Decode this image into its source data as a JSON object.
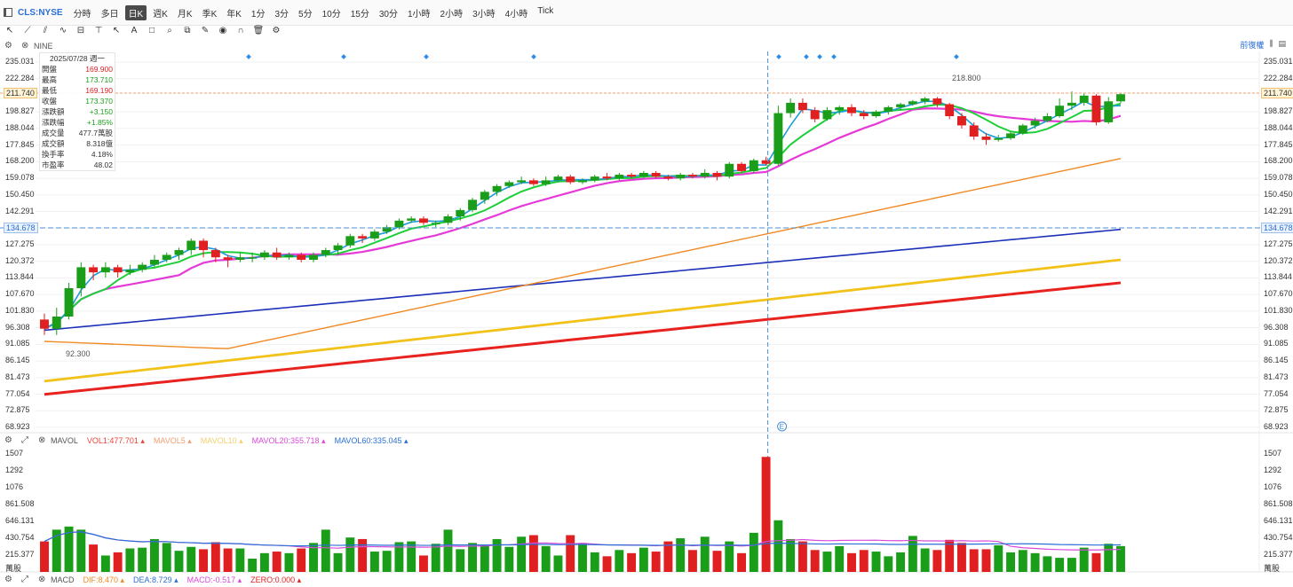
{
  "header": {
    "symbol": "CLS:NYSE",
    "timeframes": [
      "分時",
      "多日",
      "日K",
      "週K",
      "月K",
      "季K",
      "年K",
      "1分",
      "3分",
      "5分",
      "10分",
      "15分",
      "30分",
      "1小時",
      "2小時",
      "3小時",
      "4小時",
      "Tick"
    ],
    "active_timeframe": "日K"
  },
  "main_indicator": {
    "name": "NINE",
    "adjust_label": "前復權"
  },
  "info_box": {
    "date": "2025/07/28 週一",
    "rows": [
      {
        "label": "開盤",
        "value": "169.900",
        "color": "#e02020"
      },
      {
        "label": "最高",
        "value": "173.710",
        "color": "#1a9e1a"
      },
      {
        "label": "最低",
        "value": "169.190",
        "color": "#e02020"
      },
      {
        "label": "收盤",
        "value": "173.370",
        "color": "#1a9e1a"
      },
      {
        "label": "漲跌額",
        "value": "+3.150",
        "color": "#1a9e1a"
      },
      {
        "label": "漲跌幅",
        "value": "+1.85%",
        "color": "#1a9e1a"
      },
      {
        "label": "成交量",
        "value": "477.7萬股",
        "color": "#333333"
      },
      {
        "label": "成交額",
        "value": "8.318億",
        "color": "#333333"
      },
      {
        "label": "換手率",
        "value": "4.18%",
        "color": "#333333"
      },
      {
        "label": "市盈率",
        "value": "48.02",
        "color": "#333333"
      }
    ]
  },
  "price_axis": [
    "235.031",
    "222.284",
    "211.740",
    "198.827",
    "188.044",
    "177.845",
    "168.200",
    "159.078",
    "150.450",
    "142.291",
    "134.678",
    "127.275",
    "120.372",
    "113.844",
    "107.670",
    "101.830",
    "96.308",
    "91.085",
    "86.145",
    "81.473",
    "77.054",
    "72.875",
    "68.923"
  ],
  "price_tags": {
    "last_price": "211.740",
    "crosshair_price": "134.678"
  },
  "annotations": {
    "high_label": "218.800",
    "low_label": "92.300",
    "earnings_marker": "E"
  },
  "volume_panel": {
    "name": "MAVOL",
    "legend": [
      {
        "text": "VOL1:477.701",
        "color": "#e8443a"
      },
      {
        "text": "MAVOL5",
        "color": "#f0a070"
      },
      {
        "text": "MAVOL10",
        "color": "#f2d070"
      },
      {
        "text": "MAVOL20:355.718",
        "color": "#d84ad8"
      },
      {
        "text": "MAVOL60:335.045",
        "color": "#2a6fd6"
      }
    ],
    "axis": [
      "1507",
      "1292",
      "1076",
      "861.508",
      "646.131",
      "430.754",
      "215.377"
    ],
    "unit": "萬股"
  },
  "macd_panel": {
    "name": "MACD",
    "legend": [
      {
        "text": "DIF:8.470",
        "color": "#f08a24"
      },
      {
        "text": "DEA:8.729",
        "color": "#2a6fd6"
      },
      {
        "text": "MACD:-0.517",
        "color": "#d84ad8"
      },
      {
        "text": "ZERO:0.000",
        "color": "#e02020"
      }
    ]
  },
  "chart_data": {
    "type": "candlestick",
    "title": "",
    "scale": "log",
    "ylim": [
      68.923,
      235.031
    ],
    "x_categories": [
      "Mar-01"
    ],
    "ohlc": [
      [
        99,
        96,
        101,
        94
      ],
      [
        96,
        100,
        103,
        94
      ],
      [
        100,
        110,
        112,
        99
      ],
      [
        110,
        118,
        120,
        107
      ],
      [
        118,
        116,
        119,
        113
      ],
      [
        116,
        118,
        120,
        114
      ],
      [
        118,
        116,
        119,
        114
      ],
      [
        116,
        117,
        119,
        115
      ],
      [
        117,
        119,
        120,
        116
      ],
      [
        119,
        121,
        123,
        118
      ],
      [
        121,
        123,
        124,
        120
      ],
      [
        123,
        125,
        126,
        121
      ],
      [
        125,
        129,
        130,
        123
      ],
      [
        129,
        125,
        130,
        122
      ],
      [
        125,
        122,
        126,
        120
      ],
      [
        122,
        121,
        123,
        118
      ],
      [
        121,
        122,
        124,
        120
      ],
      [
        122,
        122,
        124,
        120
      ],
      [
        122,
        124,
        125,
        121
      ],
      [
        124,
        122,
        126,
        121
      ],
      [
        122,
        123,
        124,
        121
      ],
      [
        123,
        121,
        124,
        120
      ],
      [
        121,
        123,
        124,
        120
      ],
      [
        123,
        125,
        126,
        122
      ],
      [
        125,
        127,
        128,
        123
      ],
      [
        127,
        131,
        132,
        126
      ],
      [
        131,
        130,
        132,
        128
      ],
      [
        130,
        133,
        134,
        129
      ],
      [
        133,
        135,
        136,
        132
      ],
      [
        135,
        138,
        139,
        134
      ],
      [
        138,
        139,
        140,
        137
      ],
      [
        139,
        137,
        140,
        136
      ],
      [
        137,
        137,
        138,
        135
      ],
      [
        137,
        140,
        141,
        136
      ],
      [
        140,
        143,
        144,
        138
      ],
      [
        143,
        148,
        149,
        142
      ],
      [
        148,
        152,
        153,
        146
      ],
      [
        152,
        155,
        156,
        150
      ],
      [
        155,
        157,
        158,
        154
      ],
      [
        157,
        158,
        160,
        156
      ],
      [
        158,
        156,
        159,
        155
      ],
      [
        156,
        158,
        160,
        155
      ],
      [
        158,
        160,
        161,
        157
      ],
      [
        160,
        157,
        161,
        156
      ],
      [
        157,
        158,
        159,
        156
      ],
      [
        158,
        160,
        161,
        157
      ],
      [
        160,
        159,
        162,
        158
      ],
      [
        159,
        161,
        162,
        158
      ],
      [
        161,
        160,
        162,
        159
      ],
      [
        160,
        162,
        163,
        159
      ],
      [
        162,
        160,
        163,
        159
      ],
      [
        160,
        159,
        161,
        158
      ],
      [
        159,
        161,
        162,
        158
      ],
      [
        161,
        160,
        162,
        159
      ],
      [
        160,
        162,
        164,
        159
      ],
      [
        162,
        160,
        163,
        158
      ],
      [
        160,
        167,
        168,
        159
      ],
      [
        167,
        163,
        168,
        162
      ],
      [
        163,
        169,
        170,
        162
      ],
      [
        169,
        167,
        171,
        166
      ],
      [
        167,
        198,
        203,
        166
      ],
      [
        198,
        205,
        208,
        195
      ],
      [
        205,
        200,
        208,
        198
      ],
      [
        200,
        194,
        202,
        192
      ],
      [
        194,
        200,
        202,
        193
      ],
      [
        200,
        202,
        203,
        197
      ],
      [
        202,
        198,
        204,
        196
      ],
      [
        198,
        196,
        200,
        194
      ],
      [
        196,
        199,
        200,
        195
      ],
      [
        199,
        202,
        203,
        197
      ],
      [
        202,
        204,
        205,
        200
      ],
      [
        204,
        206,
        207,
        203
      ],
      [
        206,
        208,
        209,
        204
      ],
      [
        208,
        204,
        209,
        202
      ],
      [
        204,
        196,
        205,
        194
      ],
      [
        196,
        190,
        198,
        188
      ],
      [
        190,
        183,
        192,
        181
      ],
      [
        183,
        181,
        185,
        178
      ],
      [
        181,
        182,
        184,
        180
      ],
      [
        182,
        185,
        186,
        181
      ],
      [
        185,
        190,
        191,
        184
      ],
      [
        190,
        193,
        195,
        188
      ],
      [
        193,
        196,
        198,
        192
      ],
      [
        196,
        203,
        208,
        195
      ],
      [
        203,
        205,
        213,
        200
      ],
      [
        205,
        210,
        212,
        203
      ],
      [
        210,
        192,
        211,
        190
      ],
      [
        192,
        206,
        209,
        191
      ],
      [
        206,
        211,
        212,
        205
      ]
    ],
    "volume": [
      390,
      540,
      580,
      540,
      350,
      210,
      250,
      300,
      310,
      420,
      370,
      270,
      320,
      290,
      380,
      300,
      300,
      170,
      240,
      260,
      240,
      300,
      370,
      540,
      240,
      440,
      420,
      260,
      270,
      380,
      390,
      210,
      360,
      540,
      290,
      370,
      340,
      420,
      320,
      450,
      470,
      330,
      210,
      470,
      370,
      250,
      200,
      280,
      240,
      310,
      260,
      390,
      430,
      280,
      450,
      270,
      390,
      240,
      500,
      1470,
      660,
      420,
      390,
      280,
      260,
      330,
      240,
      280,
      260,
      200,
      250,
      460,
      300,
      280,
      410,
      370,
      290,
      290,
      340,
      250,
      280,
      240,
      200,
      180,
      180,
      310,
      240,
      360,
      330
    ],
    "ma_series": [
      {
        "color": "#1f9bd7"
      },
      {
        "color": "#1fcf3a"
      },
      {
        "color": "#e63ad8"
      },
      {
        "color": "#f08a24"
      },
      {
        "color": "#1c2fb8"
      },
      {
        "color": "#f2c21a"
      },
      {
        "color": "#e8221e"
      }
    ]
  }
}
